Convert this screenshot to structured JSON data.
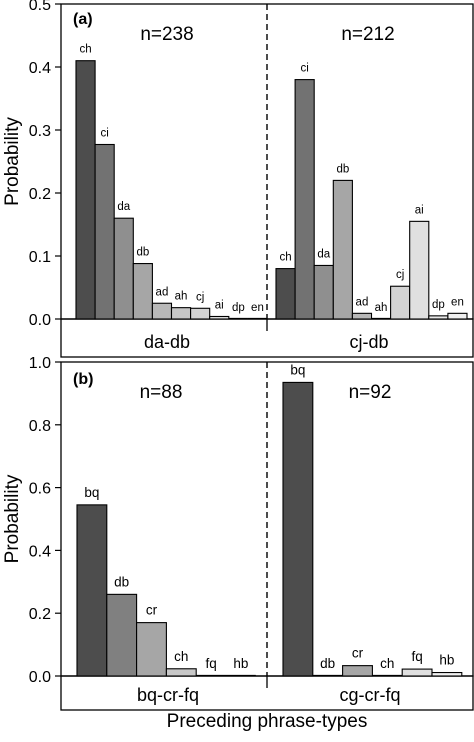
{
  "figure": {
    "xlabel": "Preceding phrase-types"
  },
  "chart_data": [
    {
      "type": "bar",
      "panel_label": "(a)",
      "ylabel": "Probability",
      "ylim": [
        0,
        0.5
      ],
      "yticks": [
        "0.0",
        "0.1",
        "0.2",
        "0.3",
        "0.4",
        "0.5"
      ],
      "groups": [
        {
          "name": "da-db",
          "n_label": "n=238",
          "categories": [
            "ch",
            "ci",
            "da",
            "db",
            "ad",
            "ah",
            "cj",
            "ai",
            "dp",
            "en"
          ],
          "values": [
            0.41,
            0.277,
            0.16,
            0.088,
            0.025,
            0.018,
            0.017,
            0.004,
            0.0,
            0.0
          ],
          "fills": [
            "#4d4d4d",
            "#727272",
            "#8f8f8f",
            "#a6a6a6",
            "#b8b8b8",
            "#c6c6c6",
            "#d3d3d3",
            "#e0e0e0",
            "#e8e8e8",
            "#f0f0f0"
          ]
        },
        {
          "name": "cj-db",
          "n_label": "n=212",
          "categories": [
            "ch",
            "ci",
            "da",
            "db",
            "ad",
            "ah",
            "cj",
            "ai",
            "dp",
            "en"
          ],
          "values": [
            0.08,
            0.38,
            0.085,
            0.22,
            0.009,
            0.0,
            0.052,
            0.155,
            0.005,
            0.009
          ],
          "fills": [
            "#4d4d4d",
            "#727272",
            "#8f8f8f",
            "#a6a6a6",
            "#b8b8b8",
            "#c6c6c6",
            "#d3d3d3",
            "#e0e0e0",
            "#e8e8e8",
            "#f0f0f0"
          ]
        }
      ]
    },
    {
      "type": "bar",
      "panel_label": "(b)",
      "ylabel": "Probability",
      "ylim": [
        0,
        1.0
      ],
      "yticks": [
        "0.0",
        "0.2",
        "0.4",
        "0.6",
        "0.8",
        "1.0"
      ],
      "groups": [
        {
          "name": "bq-cr-fq",
          "n_label": "n=88",
          "categories": [
            "bq",
            "db",
            "cr",
            "ch",
            "fq",
            "hb"
          ],
          "values": [
            0.545,
            0.26,
            0.17,
            0.023,
            0.0,
            0.0
          ],
          "fills": [
            "#4d4d4d",
            "#808080",
            "#a6a6a6",
            "#c8c8c8",
            "#e0e0e0",
            "#f0f0f0"
          ]
        },
        {
          "name": "cg-cr-fq",
          "n_label": "n=92",
          "categories": [
            "bq",
            "db",
            "cr",
            "ch",
            "fq",
            "hb"
          ],
          "values": [
            0.935,
            0.0,
            0.033,
            0.0,
            0.022,
            0.011
          ],
          "fills": [
            "#4d4d4d",
            "#808080",
            "#a6a6a6",
            "#c8c8c8",
            "#e0e0e0",
            "#f0f0f0"
          ]
        }
      ]
    }
  ]
}
